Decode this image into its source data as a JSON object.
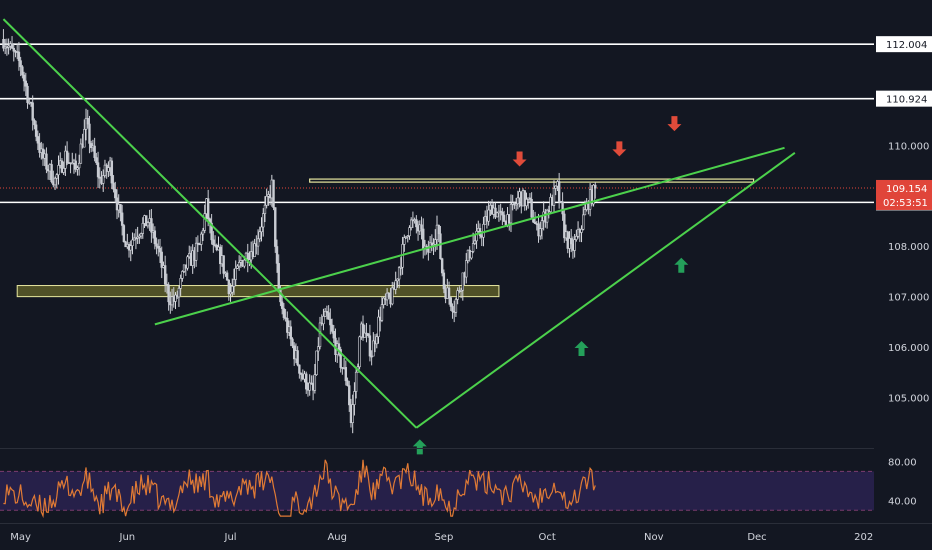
{
  "chart_data": {
    "type": "line",
    "title": "",
    "colors": {
      "background": "#131722",
      "candle_up": "#d9dbe1",
      "candle_down": "#c9ccd3",
      "trendline": "#4cd14c",
      "level_line": "#ffffff",
      "zone_fill": "#6b6b2a",
      "zone_border": "#e8e8a0",
      "arrow_down": "#e04b3a",
      "arrow_up": "#24a05a",
      "rsi_line": "#e07a35",
      "rsi_band": "#2a2250",
      "current_price": "#e0453a"
    },
    "price_axis": {
      "ticks": [
        "110.000",
        "108.000",
        "107.000",
        "106.000",
        "105.000"
      ],
      "tick_values": [
        110,
        108,
        107,
        106,
        105
      ],
      "ylim": [
        104.0,
        112.8
      ]
    },
    "time_axis": {
      "labels": [
        "May",
        "Jun",
        "Jul",
        "Aug",
        "Sep",
        "Oct",
        "Nov",
        "Dec",
        "202"
      ],
      "label_days": [
        0,
        31,
        61,
        92,
        123,
        153,
        184,
        214,
        245
      ],
      "xlim": [
        -6,
        248
      ]
    },
    "levels": [
      {
        "label": "112.004",
        "value": 112.004,
        "style": "white"
      },
      {
        "label": "110.924",
        "value": 110.924,
        "style": "white"
      },
      {
        "label": "108.868",
        "value": 108.868,
        "style": "white"
      }
    ],
    "current_price": {
      "label": "109.154",
      "countdown": "02:53:51",
      "value": 109.154
    },
    "zone": {
      "day_start": -1,
      "day_end": 139,
      "low": 107.0,
      "high": 107.22
    },
    "resistance_box": {
      "day_start": 84,
      "day_end": 213,
      "low": 109.27,
      "high": 109.33
    },
    "trendlines": [
      {
        "from": [
          -5,
          112.5
        ],
        "to": [
          115,
          104.4
        ]
      },
      {
        "from": [
          39,
          106.45
        ],
        "to": [
          222,
          109.95
        ]
      },
      {
        "from": [
          115,
          104.4
        ],
        "to": [
          225,
          109.85
        ]
      }
    ],
    "arrows": [
      {
        "dir": "down",
        "day": 145,
        "price": 109.6
      },
      {
        "dir": "down",
        "day": 174,
        "price": 109.8
      },
      {
        "dir": "down",
        "day": 190,
        "price": 110.3
      },
      {
        "dir": "up",
        "day": 116,
        "price": 104.15
      },
      {
        "dir": "up",
        "day": 163,
        "price": 106.1
      },
      {
        "dir": "up",
        "day": 192,
        "price": 107.75
      }
    ],
    "price_anchors": [
      [
        -5,
        112.1
      ],
      [
        0,
        111.6
      ],
      [
        3,
        110.7
      ],
      [
        6,
        109.8
      ],
      [
        10,
        109.3
      ],
      [
        13,
        109.8
      ],
      [
        16,
        109.5
      ],
      [
        19,
        110.4
      ],
      [
        23,
        109.3
      ],
      [
        26,
        109.6
      ],
      [
        29,
        108.5
      ],
      [
        31,
        108.0
      ],
      [
        34,
        108.3
      ],
      [
        37,
        108.5
      ],
      [
        40,
        107.9
      ],
      [
        43,
        107.0
      ],
      [
        45,
        106.9
      ],
      [
        48,
        107.6
      ],
      [
        52,
        108.0
      ],
      [
        54,
        108.8
      ],
      [
        56,
        107.9
      ],
      [
        58,
        107.8
      ],
      [
        61,
        107.1
      ],
      [
        64,
        107.7
      ],
      [
        68,
        108.0
      ],
      [
        71,
        108.7
      ],
      [
        73,
        109.2
      ],
      [
        75,
        107.0
      ],
      [
        79,
        106.0
      ],
      [
        82,
        105.4
      ],
      [
        85,
        105.1
      ],
      [
        87,
        106.4
      ],
      [
        89,
        106.6
      ],
      [
        92,
        105.9
      ],
      [
        95,
        105.3
      ],
      [
        96,
        104.5
      ],
      [
        99,
        106.4
      ],
      [
        102,
        105.9
      ],
      [
        105,
        106.8
      ],
      [
        108,
        107.0
      ],
      [
        111,
        107.9
      ],
      [
        113,
        108.5
      ],
      [
        116,
        108.3
      ],
      [
        118,
        107.8
      ],
      [
        121,
        108.4
      ],
      [
        123,
        107.2
      ],
      [
        126,
        106.8
      ],
      [
        128,
        107.3
      ],
      [
        131,
        108.0
      ],
      [
        134,
        108.3
      ],
      [
        137,
        108.8
      ],
      [
        140,
        108.5
      ],
      [
        143,
        108.7
      ],
      [
        145,
        109.0
      ],
      [
        148,
        108.8
      ],
      [
        150,
        108.3
      ],
      [
        153,
        108.7
      ],
      [
        156,
        109.15
      ],
      [
        158,
        108.3
      ],
      [
        160,
        107.9
      ],
      [
        162,
        108.2
      ],
      [
        165,
        108.9
      ],
      [
        167,
        109.1
      ]
    ],
    "rsi": {
      "ticks": [
        "80.00",
        "40.00"
      ],
      "tick_values": [
        80,
        40
      ],
      "band": [
        30,
        70
      ],
      "ylim": [
        20,
        90
      ]
    }
  }
}
